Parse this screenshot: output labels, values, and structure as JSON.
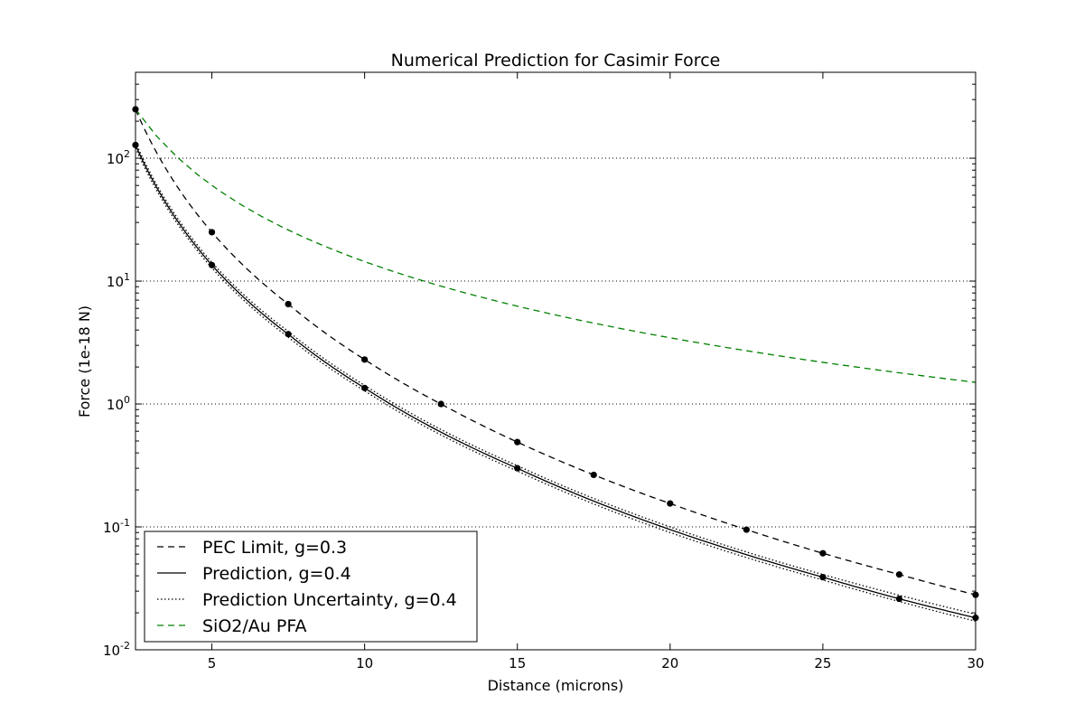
{
  "chart_data": {
    "type": "line",
    "title": "Numerical Prediction for Casimir Force",
    "xlabel": "Distance (microns)",
    "ylabel": "Force (1e-18 N)",
    "xlim": [
      2.5,
      30
    ],
    "ylim": [
      0.01,
      500
    ],
    "yscale": "log",
    "x_ticks": [
      5,
      10,
      15,
      20,
      25,
      30
    ],
    "y_ticks": [
      {
        "value": 0.01,
        "base": "10",
        "exp": "-2"
      },
      {
        "value": 0.1,
        "base": "10",
        "exp": "-1"
      },
      {
        "value": 1,
        "base": "10",
        "exp": "0"
      },
      {
        "value": 10,
        "base": "10",
        "exp": "1"
      },
      {
        "value": 100,
        "base": "10",
        "exp": "2"
      }
    ],
    "grid": "y-major-dotted",
    "legend_position": "lower-left",
    "series": [
      {
        "name": "PEC Limit, g=0.3",
        "style": "dashed",
        "color": "#000000",
        "markers": true,
        "x": [
          2.5,
          5,
          7.5,
          10,
          12.5,
          15,
          17.5,
          20,
          22.5,
          25,
          27.5,
          30
        ],
        "y": [
          250,
          25,
          6.5,
          2.3,
          1.0,
          0.49,
          0.265,
          0.155,
          0.095,
          0.061,
          0.041,
          0.028
        ]
      },
      {
        "name": "Prediction, g=0.4",
        "style": "solid",
        "color": "#000000",
        "markers": true,
        "x": [
          2.5,
          5,
          7.5,
          10,
          15,
          25,
          27.5,
          30
        ],
        "y": [
          128,
          13.5,
          3.7,
          1.35,
          0.3,
          0.039,
          0.026,
          0.0182
        ]
      },
      {
        "name": "Prediction Uncertainty, g=0.4",
        "style": "dotted",
        "color": "#000000",
        "markers": false,
        "x": [
          2.5,
          5,
          7.5,
          10,
          15,
          20,
          25,
          30
        ],
        "y_upper": [
          135,
          14.2,
          3.9,
          1.42,
          0.315,
          0.1,
          0.041,
          0.0195
        ],
        "y_lower": [
          121,
          12.8,
          3.5,
          1.28,
          0.285,
          0.09,
          0.037,
          0.0171
        ]
      },
      {
        "name": "SiO2/Au PFA",
        "style": "dashed",
        "color": "#008000",
        "markers": false,
        "x": [
          2.5,
          30
        ],
        "y": [
          250,
          1.5
        ]
      }
    ]
  }
}
